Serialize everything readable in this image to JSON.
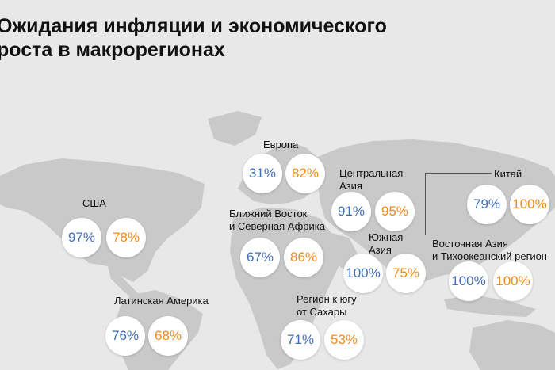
{
  "title": {
    "line1": "Ожидания инфляции и экономического",
    "line2": "роста в макрорегионах"
  },
  "colors": {
    "inflation": "#3f6eb5",
    "growth": "#f08a1c",
    "land": "#c9c9c9",
    "background": "#e8e8e8"
  },
  "regions": {
    "usa": {
      "name": [
        "США"
      ],
      "inflation": "97%",
      "growth": "78%"
    },
    "latam": {
      "name": [
        "Латинская Америка"
      ],
      "inflation": "76%",
      "growth": "68%"
    },
    "europe": {
      "name": [
        "Европа"
      ],
      "inflation": "31%",
      "growth": "82%"
    },
    "mena": {
      "name": [
        "Ближний Восток",
        "и Северная Африка"
      ],
      "inflation": "67%",
      "growth": "86%"
    },
    "ssa": {
      "name": [
        "Регион к югу",
        "от Сахары"
      ],
      "inflation": "71%",
      "growth": "53%"
    },
    "central_asia": {
      "name": [
        "Центральная",
        "Азия"
      ],
      "inflation": "91%",
      "growth": "95%"
    },
    "south_asia": {
      "name": [
        "Южная",
        "Азия"
      ],
      "inflation": "100%",
      "growth": "75%"
    },
    "china": {
      "name": [
        "Китай"
      ],
      "inflation": "79%",
      "growth": "100%"
    },
    "east_asia_pacific": {
      "name": [
        "Восточная Азия",
        "и Тихоокеанский регион"
      ],
      "inflation": "100%",
      "growth": "100%"
    }
  }
}
